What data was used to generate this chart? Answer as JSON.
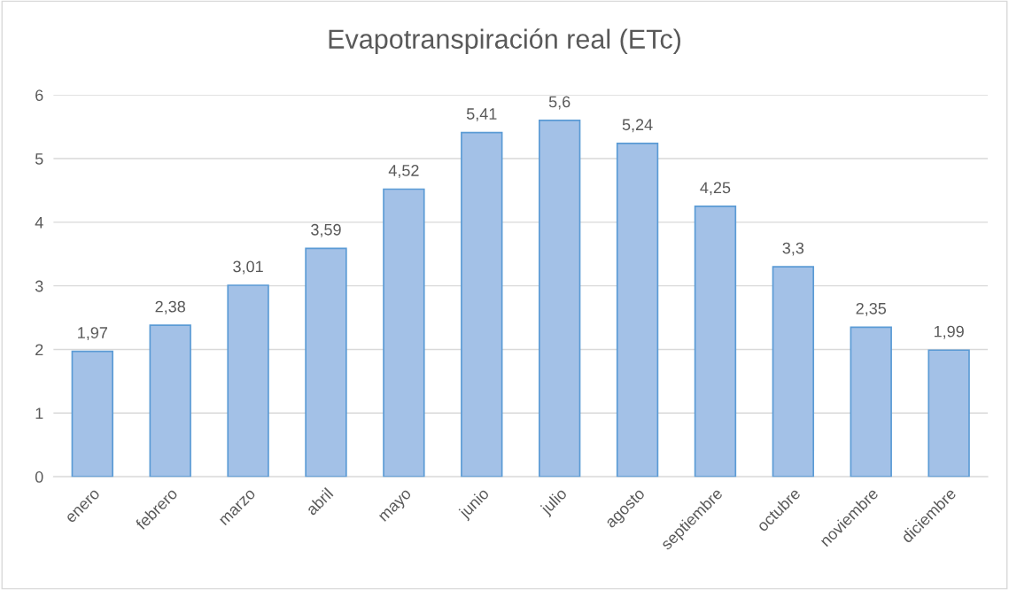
{
  "chart_data": {
    "type": "bar",
    "title": "Evapotranspiración real (ETc)",
    "categories": [
      "enero",
      "febrero",
      "marzo",
      "abril",
      "mayo",
      "junio",
      "julio",
      "agosto",
      "septiembre",
      "octubre",
      "noviembre",
      "diciembre"
    ],
    "values": [
      1.97,
      2.38,
      3.01,
      3.59,
      4.52,
      5.41,
      5.6,
      5.24,
      4.25,
      3.3,
      2.35,
      1.99
    ],
    "value_labels": [
      "1,97",
      "2,38",
      "3,01",
      "3,59",
      "4,52",
      "5,41",
      "5,6",
      "5,24",
      "4,25",
      "3,3",
      "2,35",
      "1,99"
    ],
    "color": "#a3c1e7",
    "ylim": [
      0,
      6
    ],
    "yticks": [
      0,
      1,
      2,
      3,
      4,
      5,
      6
    ],
    "grid": "y",
    "legend": false
  }
}
